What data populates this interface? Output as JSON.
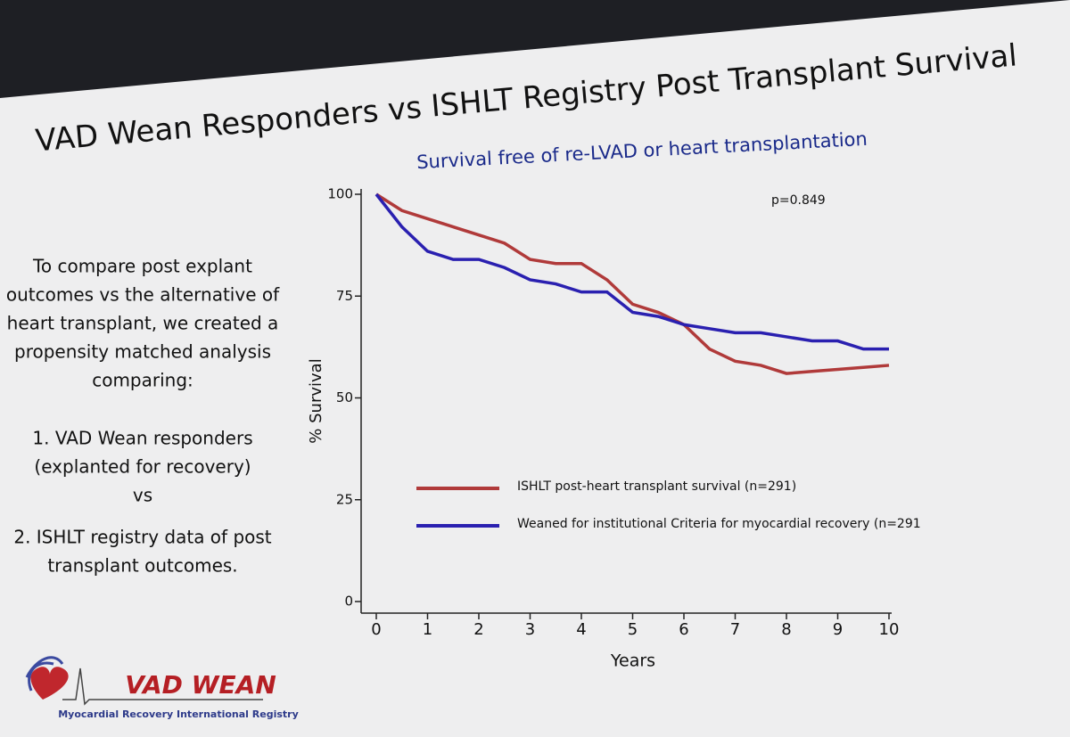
{
  "slide_title": "VAD Wean Responders vs ISHLT Registry Post Transplant Survival",
  "body_lines": [
    "To compare post explant",
    "outcomes vs the alternative of",
    "heart transplant, we created a",
    "propensity matched analysis",
    "comparing:",
    "1. VAD Wean responders",
    "(explanted for recovery)",
    "vs",
    "2.  ISHLT registry data of post",
    "transplant outcomes."
  ],
  "logo": {
    "name": "VAD WEAN",
    "tagline": "Myocardial Recovery International Registry"
  },
  "chart_data": {
    "type": "line",
    "title": "Survival free of re-LVAD or heart transplantation",
    "annotation": "p=0.849",
    "xlabel": "Years",
    "ylabel": "% Survival",
    "x": [
      0,
      0.5,
      1,
      1.5,
      2,
      2.5,
      3,
      3.5,
      4,
      4.5,
      5,
      5.5,
      6,
      6.5,
      7,
      7.5,
      8,
      8.5,
      9,
      9.5,
      10
    ],
    "series": [
      {
        "name": "ISHLT post-heart transplant survival (n=291)",
        "color": "#b03a3a",
        "values": [
          100,
          96,
          94,
          92,
          90,
          88,
          84,
          83,
          83,
          79,
          73,
          71,
          68,
          62,
          59,
          58,
          56,
          56.5,
          57,
          57.5,
          58
        ]
      },
      {
        "name": "Weaned for institutional Criteria for myocardial recovery (n=291",
        "color": "#2a20b0",
        "values": [
          100,
          92,
          86,
          84,
          84,
          82,
          79,
          78,
          76,
          76,
          71,
          70,
          68,
          67,
          66,
          66,
          65,
          64,
          64,
          62,
          62
        ]
      }
    ],
    "xlim": [
      0,
      10
    ],
    "ylim": [
      0,
      100
    ],
    "xticks": [
      0,
      1,
      2,
      3,
      4,
      5,
      6,
      7,
      8,
      9,
      10
    ],
    "yticks": [
      0,
      25,
      50,
      75,
      100
    ],
    "grid": false
  }
}
